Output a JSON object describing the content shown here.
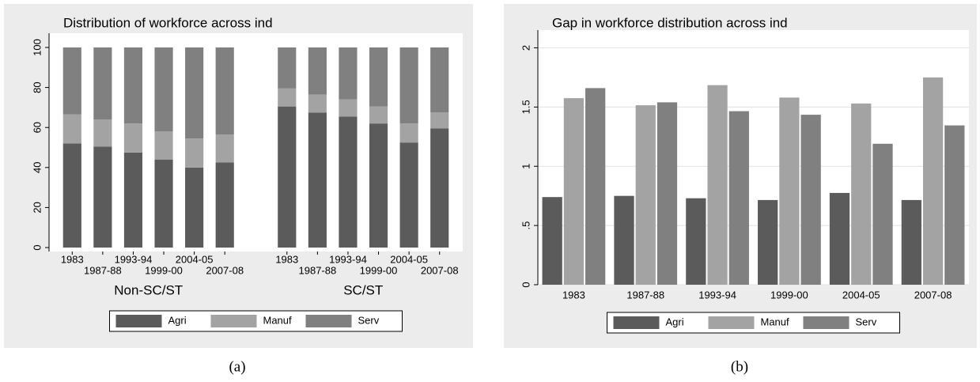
{
  "chart_data": [
    {
      "type": "bar",
      "stacked": true,
      "title": "Distribution of workforce across ind",
      "groups": [
        "Non-SC/ST",
        "SC/ST"
      ],
      "categories": [
        "1983",
        "1987-88",
        "1993-94",
        "1999-00",
        "2004-05",
        "2007-08"
      ],
      "series": [
        {
          "name": "Agri",
          "color": "#5b5b5b",
          "values": [
            [
              52,
              50.5,
              47.5,
              44,
              40,
              42.5
            ],
            [
              70.5,
              67.5,
              65.5,
              62,
              52.5,
              59.5
            ]
          ]
        },
        {
          "name": "Manuf",
          "color": "#a3a3a3",
          "values": [
            [
              14.5,
              13.5,
              14.5,
              14,
              14.5,
              14
            ],
            [
              9,
              9,
              8.5,
              8.5,
              9.5,
              8
            ]
          ]
        },
        {
          "name": "Serv",
          "color": "#808080",
          "values": [
            [
              33.5,
              36,
              38,
              42,
              45.5,
              43.5
            ],
            [
              20.5,
              23.5,
              26,
              29.5,
              38,
              32.5
            ]
          ]
        }
      ],
      "ylim": [
        0,
        100
      ],
      "yticks": [
        0,
        20,
        40,
        60,
        80,
        100
      ],
      "grid": false,
      "legend": "bottom",
      "caption": "(a)"
    },
    {
      "type": "bar",
      "stacked": false,
      "title": "Gap in workforce distribution across ind",
      "categories": [
        "1983",
        "1987-88",
        "1993-94",
        "1999-00",
        "2004-05",
        "2007-08"
      ],
      "series": [
        {
          "name": "Agri",
          "color": "#5b5b5b",
          "values": [
            0.74,
            0.75,
            0.73,
            0.715,
            0.775,
            0.715
          ]
        },
        {
          "name": "Manuf",
          "color": "#a3a3a3",
          "values": [
            1.575,
            1.515,
            1.685,
            1.58,
            1.53,
            1.75
          ]
        },
        {
          "name": "Serv",
          "color": "#808080",
          "values": [
            1.66,
            1.54,
            1.465,
            1.435,
            1.19,
            1.345
          ]
        }
      ],
      "ylim": [
        0,
        2.15
      ],
      "yticks": [
        0,
        {
          "value": 0.5,
          "label": ".5"
        },
        1,
        1.5,
        2
      ],
      "grid": true,
      "legend": "bottom",
      "caption": "(b)"
    }
  ]
}
